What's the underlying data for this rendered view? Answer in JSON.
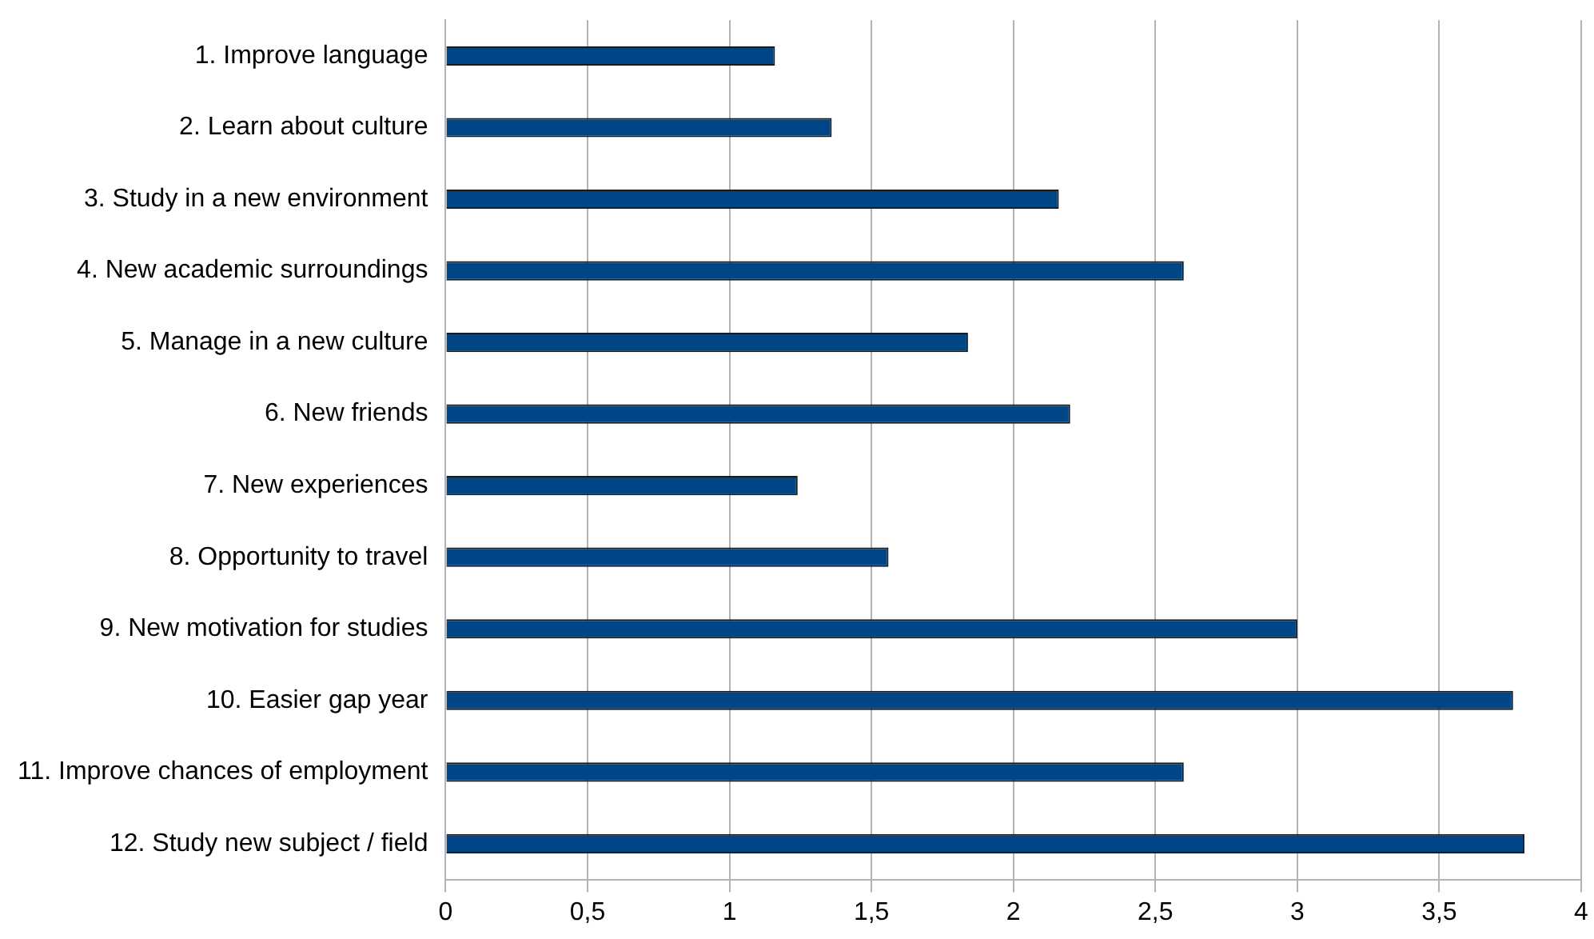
{
  "chart_data": {
    "type": "bar",
    "orientation": "horizontal",
    "categories": [
      "1. Improve language",
      "2. Learn about culture",
      "3. Study in a new environment",
      "4. New academic surroundings",
      "5. Manage in a new culture",
      "6. New friends",
      "7. New experiences",
      "8. Opportunity to travel",
      "9. New motivation for studies",
      "10. Easier gap year",
      "11. Improve chances of employment",
      "12. Study new subject / field"
    ],
    "values": [
      1.16,
      1.36,
      2.16,
      2.6,
      1.84,
      2.2,
      1.24,
      1.56,
      3.0,
      3.76,
      2.6,
      3.8
    ],
    "color": "#004586",
    "xlim": [
      0,
      4
    ],
    "xticks": [
      0,
      {
        "value": 0.5,
        "label": "0,5"
      },
      1,
      {
        "value": 1.5,
        "label": "1,5"
      },
      2,
      {
        "value": 2.5,
        "label": "2,5"
      },
      3,
      {
        "value": 3.5,
        "label": "3,5"
      },
      4
    ],
    "grid": "x"
  }
}
